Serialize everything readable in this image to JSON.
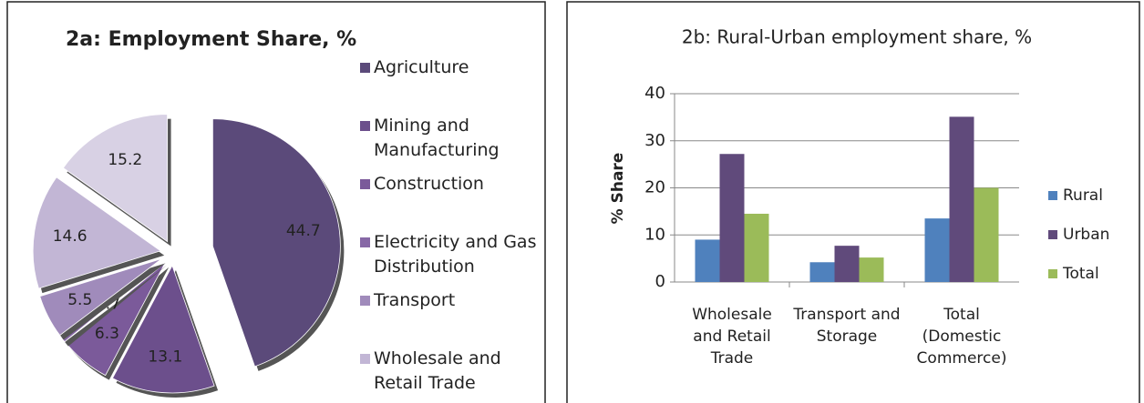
{
  "chart_data": [
    {
      "type": "pie",
      "title": "2a: Employment Share, %",
      "categories": [
        "Agriculture",
        "Mining and Manufacturing",
        "Construction",
        "Electricity and Gas Distribution",
        "Transport",
        "Wholesale and Retail Trade",
        null
      ],
      "values": [
        44.7,
        13.1,
        6.3,
        0.7,
        5.5,
        14.6,
        15.2
      ],
      "colors": [
        "#5b4a7a",
        "#6c4f8c",
        "#7b5a9a",
        "#8768a6",
        "#a08bbb",
        "#c2b6d5",
        "#d8d1e4"
      ]
    },
    {
      "type": "bar",
      "title": "2b: Rural-Urban employment share, %",
      "ylabel": "% Share",
      "categories": [
        "Wholesale and Retail Trade",
        "Transport and Storage",
        "Total (Domestic Commerce)"
      ],
      "series": [
        {
          "name": "Rural",
          "color": "#4f81bd",
          "values": [
            9,
            4.2,
            13.5
          ]
        },
        {
          "name": "Urban",
          "color": "#604a7b",
          "values": [
            27.2,
            7.7,
            35.1
          ]
        },
        {
          "name": "Total",
          "color": "#9bbb59",
          "values": [
            14.5,
            5.2,
            20
          ]
        }
      ],
      "ylim": [
        0,
        40
      ],
      "yticks": [
        0,
        10,
        20,
        30,
        40
      ],
      "grid": true
    }
  ]
}
